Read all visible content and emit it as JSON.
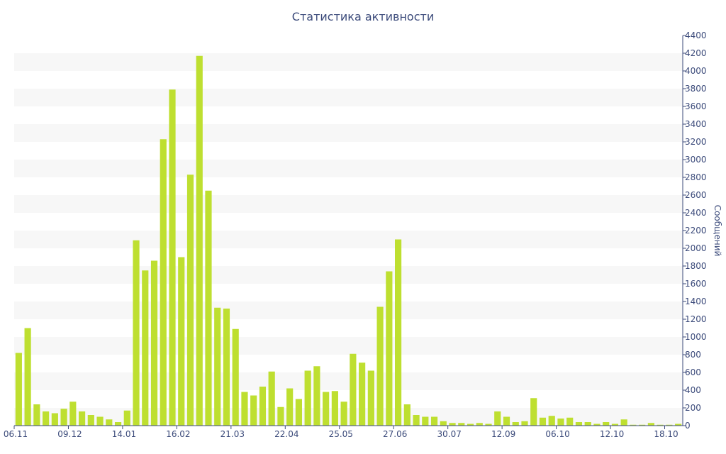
{
  "chart_data": {
    "type": "bar",
    "title": "Статистика активности",
    "xlabel": "",
    "ylabel": "Сообщений",
    "ylim": [
      0,
      4400
    ],
    "y_ticks": [
      0,
      200,
      400,
      600,
      800,
      1000,
      1200,
      1400,
      1600,
      1800,
      2000,
      2200,
      2400,
      2600,
      2800,
      3000,
      3200,
      3400,
      3600,
      3800,
      4000,
      4200,
      4400
    ],
    "x_tick_labels": [
      {
        "index": 0,
        "label": "06.11"
      },
      {
        "index": 6,
        "label": "09.12"
      },
      {
        "index": 12,
        "label": "14.01"
      },
      {
        "index": 18,
        "label": "16.02"
      },
      {
        "index": 24,
        "label": "21.03"
      },
      {
        "index": 30,
        "label": "22.04"
      },
      {
        "index": 36,
        "label": "25.05"
      },
      {
        "index": 42,
        "label": "27.06"
      },
      {
        "index": 48,
        "label": "30.07"
      },
      {
        "index": 54,
        "label": "12.09"
      },
      {
        "index": 60,
        "label": "06.10"
      },
      {
        "index": 66,
        "label": "12.10"
      },
      {
        "index": 72,
        "label": "18.10"
      }
    ],
    "bar_color": "#bedf30",
    "band_color": "#f7f7f7",
    "axis_color": "#3b4a7a",
    "grid": true,
    "values": [
      820,
      1100,
      240,
      160,
      140,
      190,
      270,
      160,
      120,
      100,
      70,
      40,
      170,
      2090,
      1750,
      1860,
      3230,
      3790,
      1900,
      2830,
      4170,
      2650,
      1330,
      1320,
      1090,
      380,
      340,
      440,
      610,
      210,
      420,
      300,
      620,
      670,
      380,
      390,
      270,
      810,
      710,
      620,
      1340,
      1740,
      2100,
      240,
      120,
      100,
      100,
      50,
      30,
      30,
      20,
      30,
      20,
      160,
      100,
      40,
      50,
      310,
      90,
      110,
      80,
      90,
      40,
      40,
      20,
      40,
      20,
      70,
      10,
      10,
      30,
      10,
      10,
      20
    ]
  }
}
